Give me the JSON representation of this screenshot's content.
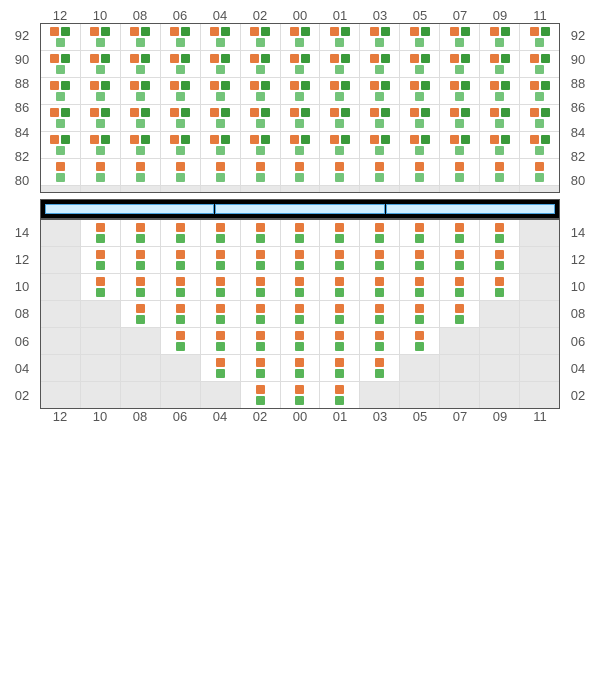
{
  "colors": {
    "orange": "#e67a3c",
    "dark_green": "#3a9a3a",
    "light_green": "#74c47a",
    "mid_green": "#58b558",
    "empty_bg": "#e8e8e8",
    "grid_border": "#555555",
    "cell_border": "#dddddd",
    "divider_bg": "#000000",
    "divider_seg_fill": "#cfeeff",
    "divider_seg_border": "#4aa3df",
    "label_color": "#555555"
  },
  "columns": [
    "12",
    "10",
    "08",
    "06",
    "04",
    "02",
    "00",
    "01",
    "03",
    "05",
    "07",
    "09",
    "11"
  ],
  "top_section": {
    "show_top_axis": true,
    "show_bottom_axis": false,
    "rows": [
      {
        "label": "92",
        "cells": [
          "A",
          "A",
          "A",
          "A",
          "A",
          "A",
          "A",
          "A",
          "A",
          "A",
          "A",
          "A",
          "A"
        ]
      },
      {
        "label": "90",
        "cells": [
          "A",
          "A",
          "A",
          "A",
          "A",
          "A",
          "A",
          "A",
          "A",
          "A",
          "A",
          "A",
          "A"
        ]
      },
      {
        "label": "88",
        "cells": [
          "A",
          "A",
          "A",
          "A",
          "A",
          "A",
          "A",
          "A",
          "A",
          "A",
          "A",
          "A",
          "A"
        ]
      },
      {
        "label": "86",
        "cells": [
          "A",
          "A",
          "A",
          "A",
          "A",
          "A",
          "A",
          "A",
          "A",
          "A",
          "A",
          "A",
          "A"
        ]
      },
      {
        "label": "84",
        "cells": [
          "A",
          "A",
          "A",
          "A",
          "A",
          "A",
          "A",
          "A",
          "A",
          "A",
          "A",
          "A",
          "A"
        ]
      },
      {
        "label": "82",
        "cells": [
          "B",
          "B",
          "B",
          "B",
          "B",
          "B",
          "B",
          "B",
          "B",
          "B",
          "B",
          "B",
          "B"
        ]
      },
      {
        "label": "80",
        "cells": [
          "E",
          "E",
          "E",
          "E",
          "E",
          "E",
          "E",
          "E",
          "E",
          "E",
          "E",
          "E",
          "E"
        ]
      }
    ]
  },
  "divider_segments": 3,
  "bottom_section": {
    "show_top_axis": false,
    "show_bottom_axis": true,
    "rows": [
      {
        "label": "14",
        "cells": [
          "E",
          "C",
          "C",
          "C",
          "C",
          "C",
          "C",
          "C",
          "C",
          "C",
          "C",
          "C",
          "E"
        ]
      },
      {
        "label": "12",
        "cells": [
          "E",
          "C",
          "C",
          "C",
          "C",
          "C",
          "C",
          "C",
          "C",
          "C",
          "C",
          "C",
          "E"
        ]
      },
      {
        "label": "10",
        "cells": [
          "E",
          "C",
          "C",
          "C",
          "C",
          "C",
          "C",
          "C",
          "C",
          "C",
          "C",
          "C",
          "E"
        ]
      },
      {
        "label": "08",
        "cells": [
          "E",
          "E",
          "C",
          "C",
          "C",
          "C",
          "C",
          "C",
          "C",
          "C",
          "C",
          "E",
          "E"
        ]
      },
      {
        "label": "06",
        "cells": [
          "E",
          "E",
          "E",
          "C",
          "C",
          "C",
          "C",
          "C",
          "C",
          "C",
          "E",
          "E",
          "E"
        ]
      },
      {
        "label": "04",
        "cells": [
          "E",
          "E",
          "E",
          "E",
          "C",
          "C",
          "C",
          "C",
          "C",
          "E",
          "E",
          "E",
          "E"
        ]
      },
      {
        "label": "02",
        "cells": [
          "E",
          "E",
          "E",
          "E",
          "E",
          "C",
          "C",
          "C",
          "E",
          "E",
          "E",
          "E",
          "E"
        ]
      }
    ]
  },
  "patterns": {
    "A": {
      "top": [
        "orange",
        "dark_green"
      ],
      "bot": [
        "light_green"
      ]
    },
    "B": {
      "top": [
        "orange"
      ],
      "bot": [
        "light_green"
      ]
    },
    "C": {
      "top": [
        "orange"
      ],
      "bot": [
        "mid_green"
      ]
    }
  }
}
